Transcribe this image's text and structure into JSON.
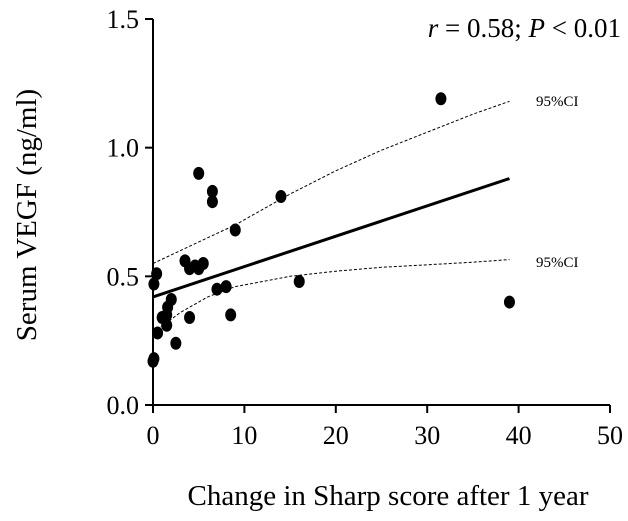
{
  "chart_data": {
    "type": "scatter",
    "title": "",
    "xlabel": "Change in Sharp score after 1 year",
    "ylabel": "Serum VEGF (ng/ml)",
    "xlim": [
      0,
      50
    ],
    "ylim": [
      0,
      1.5
    ],
    "x_ticks": [
      0,
      10,
      20,
      30,
      40,
      50
    ],
    "y_ticks": [
      0.0,
      0.5,
      1.0,
      1.5
    ],
    "x_tick_labels": [
      "0",
      "10",
      "20",
      "30",
      "40",
      "50"
    ],
    "y_tick_labels": [
      "0.0",
      "0.5",
      "1.0",
      "1.5"
    ],
    "grid": false,
    "annotation": {
      "r_symbol": "r",
      "r_text": " = 0.58; ",
      "p_symbol": "P",
      "p_text": " < 0.01"
    },
    "points": [
      {
        "x": 0.0,
        "y": 0.17
      },
      {
        "x": 0.1,
        "y": 0.18
      },
      {
        "x": 0.1,
        "y": 0.47
      },
      {
        "x": 0.4,
        "y": 0.51
      },
      {
        "x": 0.5,
        "y": 0.28
      },
      {
        "x": 1.0,
        "y": 0.34
      },
      {
        "x": 1.5,
        "y": 0.31
      },
      {
        "x": 1.5,
        "y": 0.35
      },
      {
        "x": 1.6,
        "y": 0.38
      },
      {
        "x": 2.0,
        "y": 0.41
      },
      {
        "x": 2.5,
        "y": 0.24
      },
      {
        "x": 3.5,
        "y": 0.56
      },
      {
        "x": 4.0,
        "y": 0.53
      },
      {
        "x": 4.0,
        "y": 0.34
      },
      {
        "x": 4.6,
        "y": 0.54
      },
      {
        "x": 5.0,
        "y": 0.53
      },
      {
        "x": 5.0,
        "y": 0.9
      },
      {
        "x": 5.5,
        "y": 0.55
      },
      {
        "x": 6.5,
        "y": 0.83
      },
      {
        "x": 6.5,
        "y": 0.79
      },
      {
        "x": 7.0,
        "y": 0.45
      },
      {
        "x": 8.0,
        "y": 0.46
      },
      {
        "x": 8.5,
        "y": 0.35
      },
      {
        "x": 9.0,
        "y": 0.68
      },
      {
        "x": 14.0,
        "y": 0.81
      },
      {
        "x": 16.0,
        "y": 0.48
      },
      {
        "x": 31.5,
        "y": 1.19
      },
      {
        "x": 39.0,
        "y": 0.4
      }
    ],
    "regression": {
      "x": [
        0,
        39
      ],
      "y": [
        0.42,
        0.88
      ]
    },
    "ci_upper": {
      "label": "95%CI",
      "x": [
        0,
        3,
        6,
        9,
        12,
        15,
        20,
        25,
        30,
        35,
        39
      ],
      "y": [
        0.55,
        0.6,
        0.65,
        0.7,
        0.76,
        0.82,
        0.91,
        0.99,
        1.06,
        1.13,
        1.18
      ]
    },
    "ci_lower": {
      "label": "95%CI",
      "x": [
        0,
        3,
        6,
        9,
        12,
        15,
        20,
        25,
        30,
        35,
        39
      ],
      "y": [
        0.28,
        0.36,
        0.42,
        0.46,
        0.48,
        0.5,
        0.52,
        0.535,
        0.545,
        0.555,
        0.565
      ]
    }
  }
}
